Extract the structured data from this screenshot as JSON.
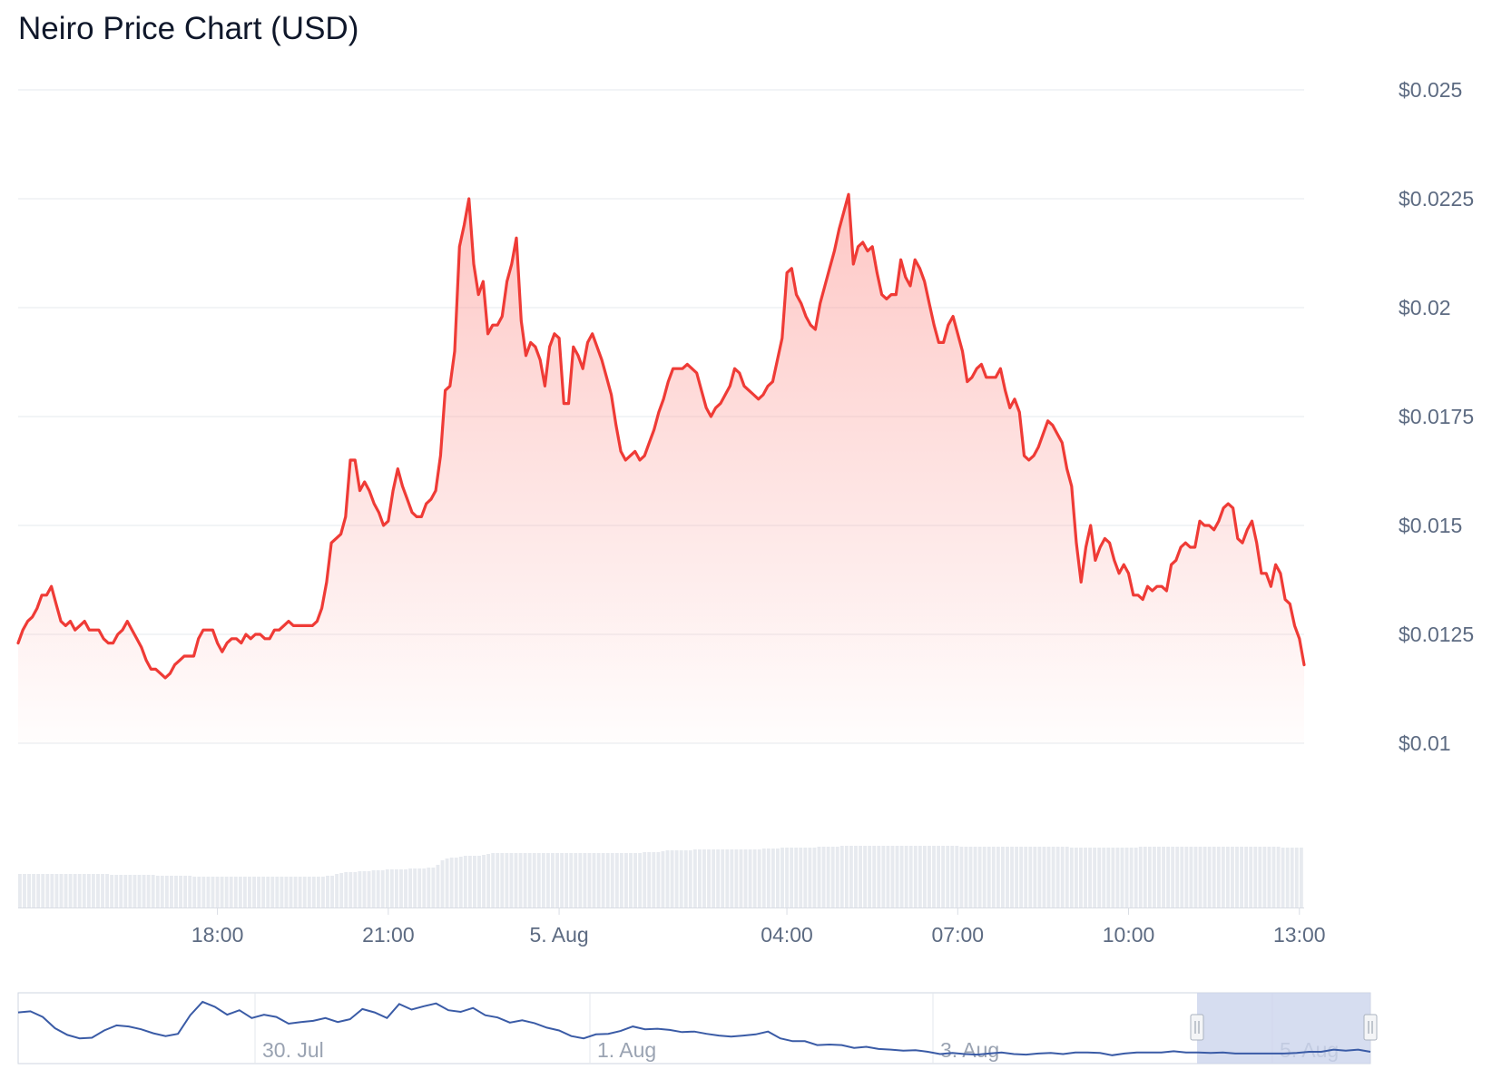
{
  "page": {
    "title": "Neiro Price Chart (USD)"
  },
  "chart_data": {
    "type": "area",
    "title": "Neiro Price Chart (USD)",
    "xlabel": "",
    "ylabel": "",
    "currency": "USD",
    "x_start": "2024-08-04 14:30",
    "x_end": "2024-08-05 13:05",
    "x_step_minutes": 5,
    "ylim": [
      0.01,
      0.025
    ],
    "y_ticks": [
      0.01,
      0.0125,
      0.015,
      0.0175,
      0.02,
      0.0225,
      0.025
    ],
    "y_tick_labels": [
      "$0.01",
      "$0.0125",
      "$0.015",
      "$0.0175",
      "$0.02",
      "$0.0225",
      "$0.025"
    ],
    "x_ticks": [
      {
        "time": "2024-08-04 18:00",
        "label": "18:00"
      },
      {
        "time": "2024-08-04 21:00",
        "label": "21:00"
      },
      {
        "time": "2024-08-05 00:00",
        "label": "5. Aug"
      },
      {
        "time": "2024-08-05 04:00",
        "label": "04:00"
      },
      {
        "time": "2024-08-05 07:00",
        "label": "07:00"
      },
      {
        "time": "2024-08-05 10:00",
        "label": "10:00"
      },
      {
        "time": "2024-08-05 13:00",
        "label": "13:00"
      }
    ],
    "grid": true,
    "legend": "none",
    "series": [
      {
        "name": "Price",
        "values": [
          0.0123,
          0.0126,
          0.0128,
          0.0129,
          0.0131,
          0.0134,
          0.0134,
          0.0136,
          0.0132,
          0.0128,
          0.0127,
          0.0128,
          0.0126,
          0.0127,
          0.0128,
          0.0126,
          0.0126,
          0.0126,
          0.0124,
          0.0123,
          0.0123,
          0.0125,
          0.0126,
          0.0128,
          0.0126,
          0.0124,
          0.0122,
          0.0119,
          0.0117,
          0.0117,
          0.0116,
          0.0115,
          0.0116,
          0.0118,
          0.0119,
          0.012,
          0.012,
          0.012,
          0.0124,
          0.0126,
          0.0126,
          0.0126,
          0.0123,
          0.0121,
          0.0123,
          0.0124,
          0.0124,
          0.0123,
          0.0125,
          0.0124,
          0.0125,
          0.0125,
          0.0124,
          0.0124,
          0.0126,
          0.0126,
          0.0127,
          0.0128,
          0.0127,
          0.0127,
          0.0127,
          0.0127,
          0.0127,
          0.0128,
          0.0131,
          0.0137,
          0.0146,
          0.0147,
          0.0148,
          0.0152,
          0.0165,
          0.0165,
          0.0158,
          0.016,
          0.0158,
          0.0155,
          0.0153,
          0.015,
          0.0151,
          0.0158,
          0.0163,
          0.0159,
          0.0156,
          0.0153,
          0.0152,
          0.0152,
          0.0155,
          0.0156,
          0.0158,
          0.0166,
          0.0181,
          0.0182,
          0.019,
          0.0214,
          0.0219,
          0.0225,
          0.021,
          0.0203,
          0.0206,
          0.0194,
          0.0196,
          0.0196,
          0.0198,
          0.0206,
          0.021,
          0.0216,
          0.0197,
          0.0189,
          0.0192,
          0.0191,
          0.0188,
          0.0182,
          0.0191,
          0.0194,
          0.0193,
          0.0178,
          0.0178,
          0.0191,
          0.0189,
          0.0186,
          0.0192,
          0.0194,
          0.0191,
          0.0188,
          0.0184,
          0.018,
          0.0173,
          0.0167,
          0.0165,
          0.0166,
          0.0167,
          0.0165,
          0.0166,
          0.0169,
          0.0172,
          0.0176,
          0.0179,
          0.0183,
          0.0186,
          0.0186,
          0.0186,
          0.0187,
          0.0186,
          0.0185,
          0.0181,
          0.0177,
          0.0175,
          0.0177,
          0.0178,
          0.018,
          0.0182,
          0.0186,
          0.0185,
          0.0182,
          0.0181,
          0.018,
          0.0179,
          0.018,
          0.0182,
          0.0183,
          0.0188,
          0.0193,
          0.0208,
          0.0209,
          0.0203,
          0.0201,
          0.0198,
          0.0196,
          0.0195,
          0.0201,
          0.0205,
          0.0209,
          0.0213,
          0.0218,
          0.0222,
          0.0226,
          0.021,
          0.0214,
          0.0215,
          0.0213,
          0.0214,
          0.0208,
          0.0203,
          0.0202,
          0.0203,
          0.0203,
          0.0211,
          0.0207,
          0.0205,
          0.0211,
          0.0209,
          0.0206,
          0.0201,
          0.0196,
          0.0192,
          0.0192,
          0.0196,
          0.0198,
          0.0194,
          0.019,
          0.0183,
          0.0184,
          0.0186,
          0.0187,
          0.0184,
          0.0184,
          0.0184,
          0.0186,
          0.0181,
          0.0177,
          0.0179,
          0.0176,
          0.0166,
          0.0165,
          0.0166,
          0.0168,
          0.0171,
          0.0174,
          0.0173,
          0.0171,
          0.0169,
          0.0163,
          0.0159,
          0.0146,
          0.0137,
          0.0145,
          0.015,
          0.0142,
          0.0145,
          0.0147,
          0.0146,
          0.0142,
          0.0139,
          0.0141,
          0.0139,
          0.0134,
          0.0134,
          0.0133,
          0.0136,
          0.0135,
          0.0136,
          0.0136,
          0.0135,
          0.0141,
          0.0142,
          0.0145,
          0.0146,
          0.0145,
          0.0145,
          0.0151,
          0.015,
          0.015,
          0.0149,
          0.0151,
          0.0154,
          0.0155,
          0.0154,
          0.0147,
          0.0146,
          0.0149,
          0.0151,
          0.0146,
          0.0139,
          0.0139,
          0.0136,
          0.0141,
          0.0139,
          0.0133,
          0.0132,
          0.0127,
          0.0124,
          0.0118
        ]
      }
    ],
    "volume": {
      "name": "Volume",
      "relative_values": [
        0.37,
        0.37,
        0.37,
        0.37,
        0.37,
        0.37,
        0.37,
        0.37,
        0.37,
        0.37,
        0.37,
        0.37,
        0.37,
        0.37,
        0.37,
        0.37,
        0.37,
        0.37,
        0.37,
        0.37,
        0.36,
        0.36,
        0.36,
        0.36,
        0.36,
        0.36,
        0.36,
        0.36,
        0.36,
        0.36,
        0.35,
        0.35,
        0.35,
        0.35,
        0.35,
        0.35,
        0.35,
        0.35,
        0.34,
        0.34,
        0.34,
        0.34,
        0.34,
        0.34,
        0.34,
        0.34,
        0.34,
        0.34,
        0.34,
        0.34,
        0.34,
        0.34,
        0.34,
        0.34,
        0.34,
        0.34,
        0.34,
        0.34,
        0.34,
        0.34,
        0.34,
        0.34,
        0.34,
        0.34,
        0.34,
        0.34,
        0.34,
        0.35,
        0.35,
        0.37,
        0.38,
        0.39,
        0.39,
        0.39,
        0.4,
        0.4,
        0.4,
        0.41,
        0.41,
        0.41,
        0.42,
        0.42,
        0.42,
        0.42,
        0.42,
        0.43,
        0.43,
        0.43,
        0.43,
        0.44,
        0.44,
        0.47,
        0.52,
        0.54,
        0.55,
        0.55,
        0.56,
        0.57,
        0.57,
        0.57,
        0.57,
        0.58,
        0.59,
        0.6,
        0.6,
        0.6,
        0.6,
        0.6,
        0.6,
        0.6,
        0.6,
        0.6,
        0.6,
        0.6,
        0.6,
        0.6,
        0.6,
        0.6,
        0.6,
        0.6,
        0.6,
        0.6,
        0.6,
        0.6,
        0.6,
        0.6,
        0.6,
        0.6,
        0.6,
        0.6,
        0.6,
        0.6,
        0.6,
        0.6,
        0.6,
        0.6,
        0.61,
        0.61,
        0.61,
        0.61,
        0.62,
        0.63,
        0.63,
        0.63,
        0.63,
        0.63,
        0.63,
        0.64,
        0.64,
        0.64,
        0.64,
        0.64,
        0.64,
        0.64,
        0.64,
        0.64,
        0.64,
        0.64,
        0.64,
        0.64,
        0.64,
        0.64,
        0.65,
        0.65,
        0.65,
        0.65,
        0.66,
        0.66,
        0.66,
        0.66,
        0.66,
        0.66,
        0.66,
        0.66,
        0.67,
        0.67,
        0.67,
        0.67,
        0.67,
        0.68,
        0.68,
        0.68,
        0.68,
        0.68,
        0.68,
        0.68,
        0.68,
        0.68,
        0.68,
        0.68,
        0.68,
        0.68,
        0.68,
        0.68,
        0.68,
        0.68,
        0.68,
        0.68,
        0.68,
        0.68,
        0.68,
        0.68,
        0.68,
        0.68,
        0.68,
        0.67,
        0.67,
        0.67,
        0.67,
        0.67,
        0.67,
        0.67,
        0.67,
        0.67,
        0.67,
        0.67,
        0.67,
        0.67,
        0.67,
        0.67,
        0.67,
        0.67,
        0.67,
        0.67,
        0.67,
        0.67,
        0.67,
        0.67,
        0.67,
        0.66,
        0.66,
        0.66,
        0.66,
        0.66,
        0.66,
        0.66,
        0.66,
        0.66,
        0.66,
        0.66,
        0.66,
        0.66,
        0.66,
        0.66,
        0.67,
        0.67,
        0.67,
        0.67,
        0.67,
        0.67,
        0.67,
        0.67,
        0.67,
        0.67,
        0.67,
        0.67,
        0.67,
        0.67,
        0.67,
        0.67,
        0.67,
        0.67,
        0.67,
        0.67,
        0.67,
        0.67,
        0.67,
        0.67,
        0.67,
        0.67,
        0.67,
        0.67,
        0.67,
        0.67,
        0.67,
        0.66,
        0.66,
        0.66,
        0.66,
        0.66
      ]
    },
    "navigator": {
      "tick_labels": [
        "30. Jul",
        "1. Aug",
        "3. Aug",
        "5. Aug"
      ],
      "range_start_label": "5. Aug",
      "series_relative_values": [
        0.78,
        0.8,
        0.7,
        0.5,
        0.38,
        0.32,
        0.33,
        0.46,
        0.55,
        0.53,
        0.48,
        0.41,
        0.36,
        0.4,
        0.73,
        0.97,
        0.88,
        0.74,
        0.82,
        0.68,
        0.74,
        0.7,
        0.58,
        0.61,
        0.63,
        0.68,
        0.61,
        0.66,
        0.84,
        0.78,
        0.68,
        0.93,
        0.83,
        0.89,
        0.94,
        0.82,
        0.79,
        0.86,
        0.73,
        0.69,
        0.6,
        0.64,
        0.59,
        0.51,
        0.46,
        0.36,
        0.32,
        0.39,
        0.4,
        0.45,
        0.53,
        0.48,
        0.49,
        0.47,
        0.43,
        0.44,
        0.4,
        0.37,
        0.35,
        0.37,
        0.39,
        0.44,
        0.32,
        0.27,
        0.27,
        0.2,
        0.21,
        0.2,
        0.15,
        0.17,
        0.13,
        0.12,
        0.1,
        0.11,
        0.08,
        0.04,
        0.06,
        0.04,
        0.03,
        0.05,
        0.07,
        0.04,
        0.03,
        0.05,
        0.06,
        0.04,
        0.07,
        0.07,
        0.06,
        0.02,
        0.05,
        0.07,
        0.07,
        0.07,
        0.09,
        0.07,
        0.07,
        0.06,
        0.07,
        0.05,
        0.05,
        0.05,
        0.05,
        0.05,
        0.06,
        0.08,
        0.08,
        0.12,
        0.1,
        0.12,
        0.08
      ]
    },
    "colors": {
      "line": "#ef3b36",
      "area_fill": "#fc9a96",
      "volume_bar": "#e7eaef",
      "navigator_line": "#3a5ba6",
      "navigator_selection": "#ccd5ec"
    }
  }
}
